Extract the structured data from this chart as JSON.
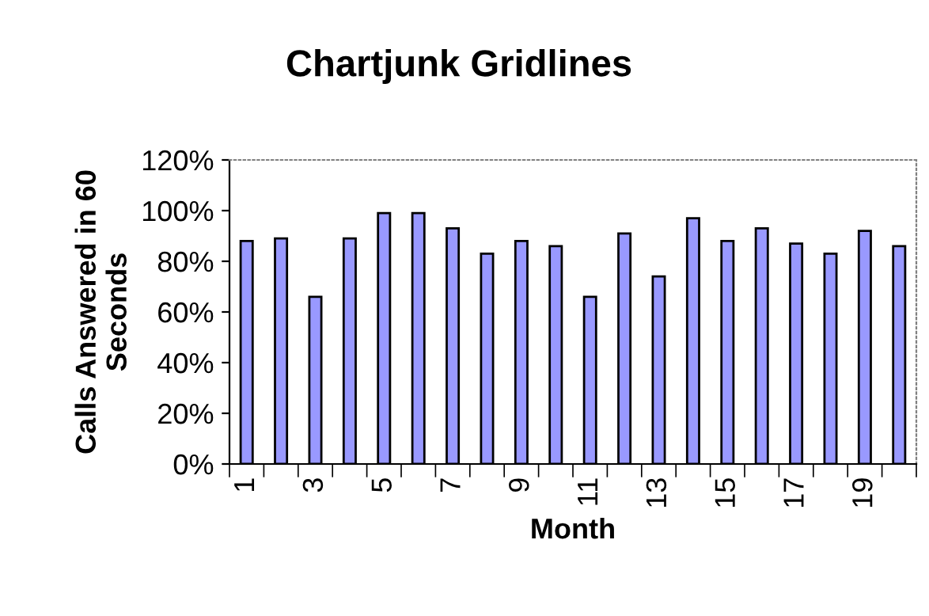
{
  "chart_data": {
    "type": "bar",
    "title": "Chartjunk Gridlines",
    "xlabel": "Month",
    "ylabel": "Calls Answered in 60\nSeconds",
    "categories": [
      "1",
      null,
      "3",
      null,
      "5",
      null,
      "7",
      null,
      "9",
      null,
      "11",
      null,
      "13",
      null,
      "15",
      null,
      "17",
      null,
      "19",
      null
    ],
    "series": [
      {
        "color": "#9999ff",
        "values": [
          88,
          89,
          66,
          89,
          99,
          99,
          93,
          83,
          88,
          86,
          66,
          91,
          74,
          97,
          88,
          93,
          87,
          83,
          92,
          86
        ]
      }
    ],
    "ylim": [
      0,
      120
    ],
    "yticks": [
      {
        "value": 0,
        "label": "0%"
      },
      {
        "value": 20,
        "label": "20%"
      },
      {
        "value": 40,
        "label": "40%"
      },
      {
        "value": 60,
        "label": "60%"
      },
      {
        "value": 80,
        "label": "80%"
      },
      {
        "value": 100,
        "label": "100%"
      },
      {
        "value": 120,
        "label": "120%"
      }
    ],
    "grid": false,
    "legend": false
  }
}
